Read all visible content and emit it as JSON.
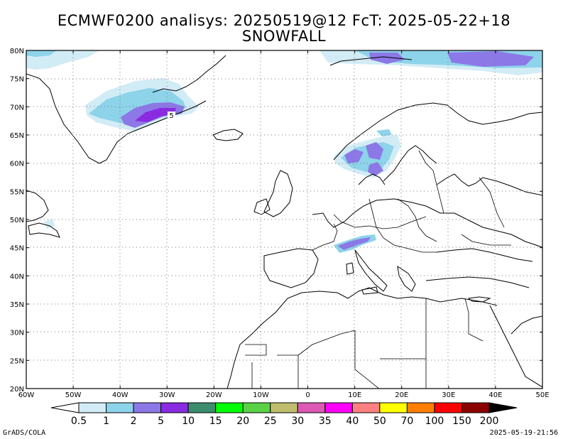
{
  "header": {
    "title_line1": "ECMWF0200 analisys: 20250519@12 FcT: 2025-05-22+18",
    "title_line2": "SNOWFALL"
  },
  "map": {
    "lat_labels": [
      "80N",
      "75N",
      "70N",
      "65N",
      "60N",
      "55N",
      "50N",
      "45N",
      "40N",
      "35N",
      "30N",
      "25N",
      "20N"
    ],
    "lon_labels": [
      "60W",
      "50W",
      "40W",
      "30W",
      "20W",
      "10W",
      "0",
      "10E",
      "20E",
      "30E",
      "40E",
      "50E"
    ],
    "contour_label": "5",
    "region_lon_range": [
      "60W",
      "50E"
    ],
    "region_lat_range": [
      "20N",
      "80N"
    ],
    "grid": "dotted"
  },
  "legend": {
    "labels": [
      "0.5",
      "1",
      "2",
      "5",
      "10",
      "15",
      "20",
      "25",
      "30",
      "35",
      "40",
      "50",
      "70",
      "100",
      "150",
      "200"
    ],
    "colors": [
      "#d2ecf6",
      "#8dd3ea",
      "#8c78e6",
      "#8a2be2",
      "#3c8c6e",
      "#00ff00",
      "#5ad246",
      "#bebe6e",
      "#dc5ab4",
      "#ff00ff",
      "#ff8080",
      "#ffff00",
      "#ff8000",
      "#ff0000",
      "#8c0000"
    ],
    "arrow_left_color": "#ffffff",
    "arrow_right_color": "#000000"
  },
  "footer": {
    "credit": "GrADS/COLA",
    "timestamp": "2025-05-19-21:56"
  }
}
